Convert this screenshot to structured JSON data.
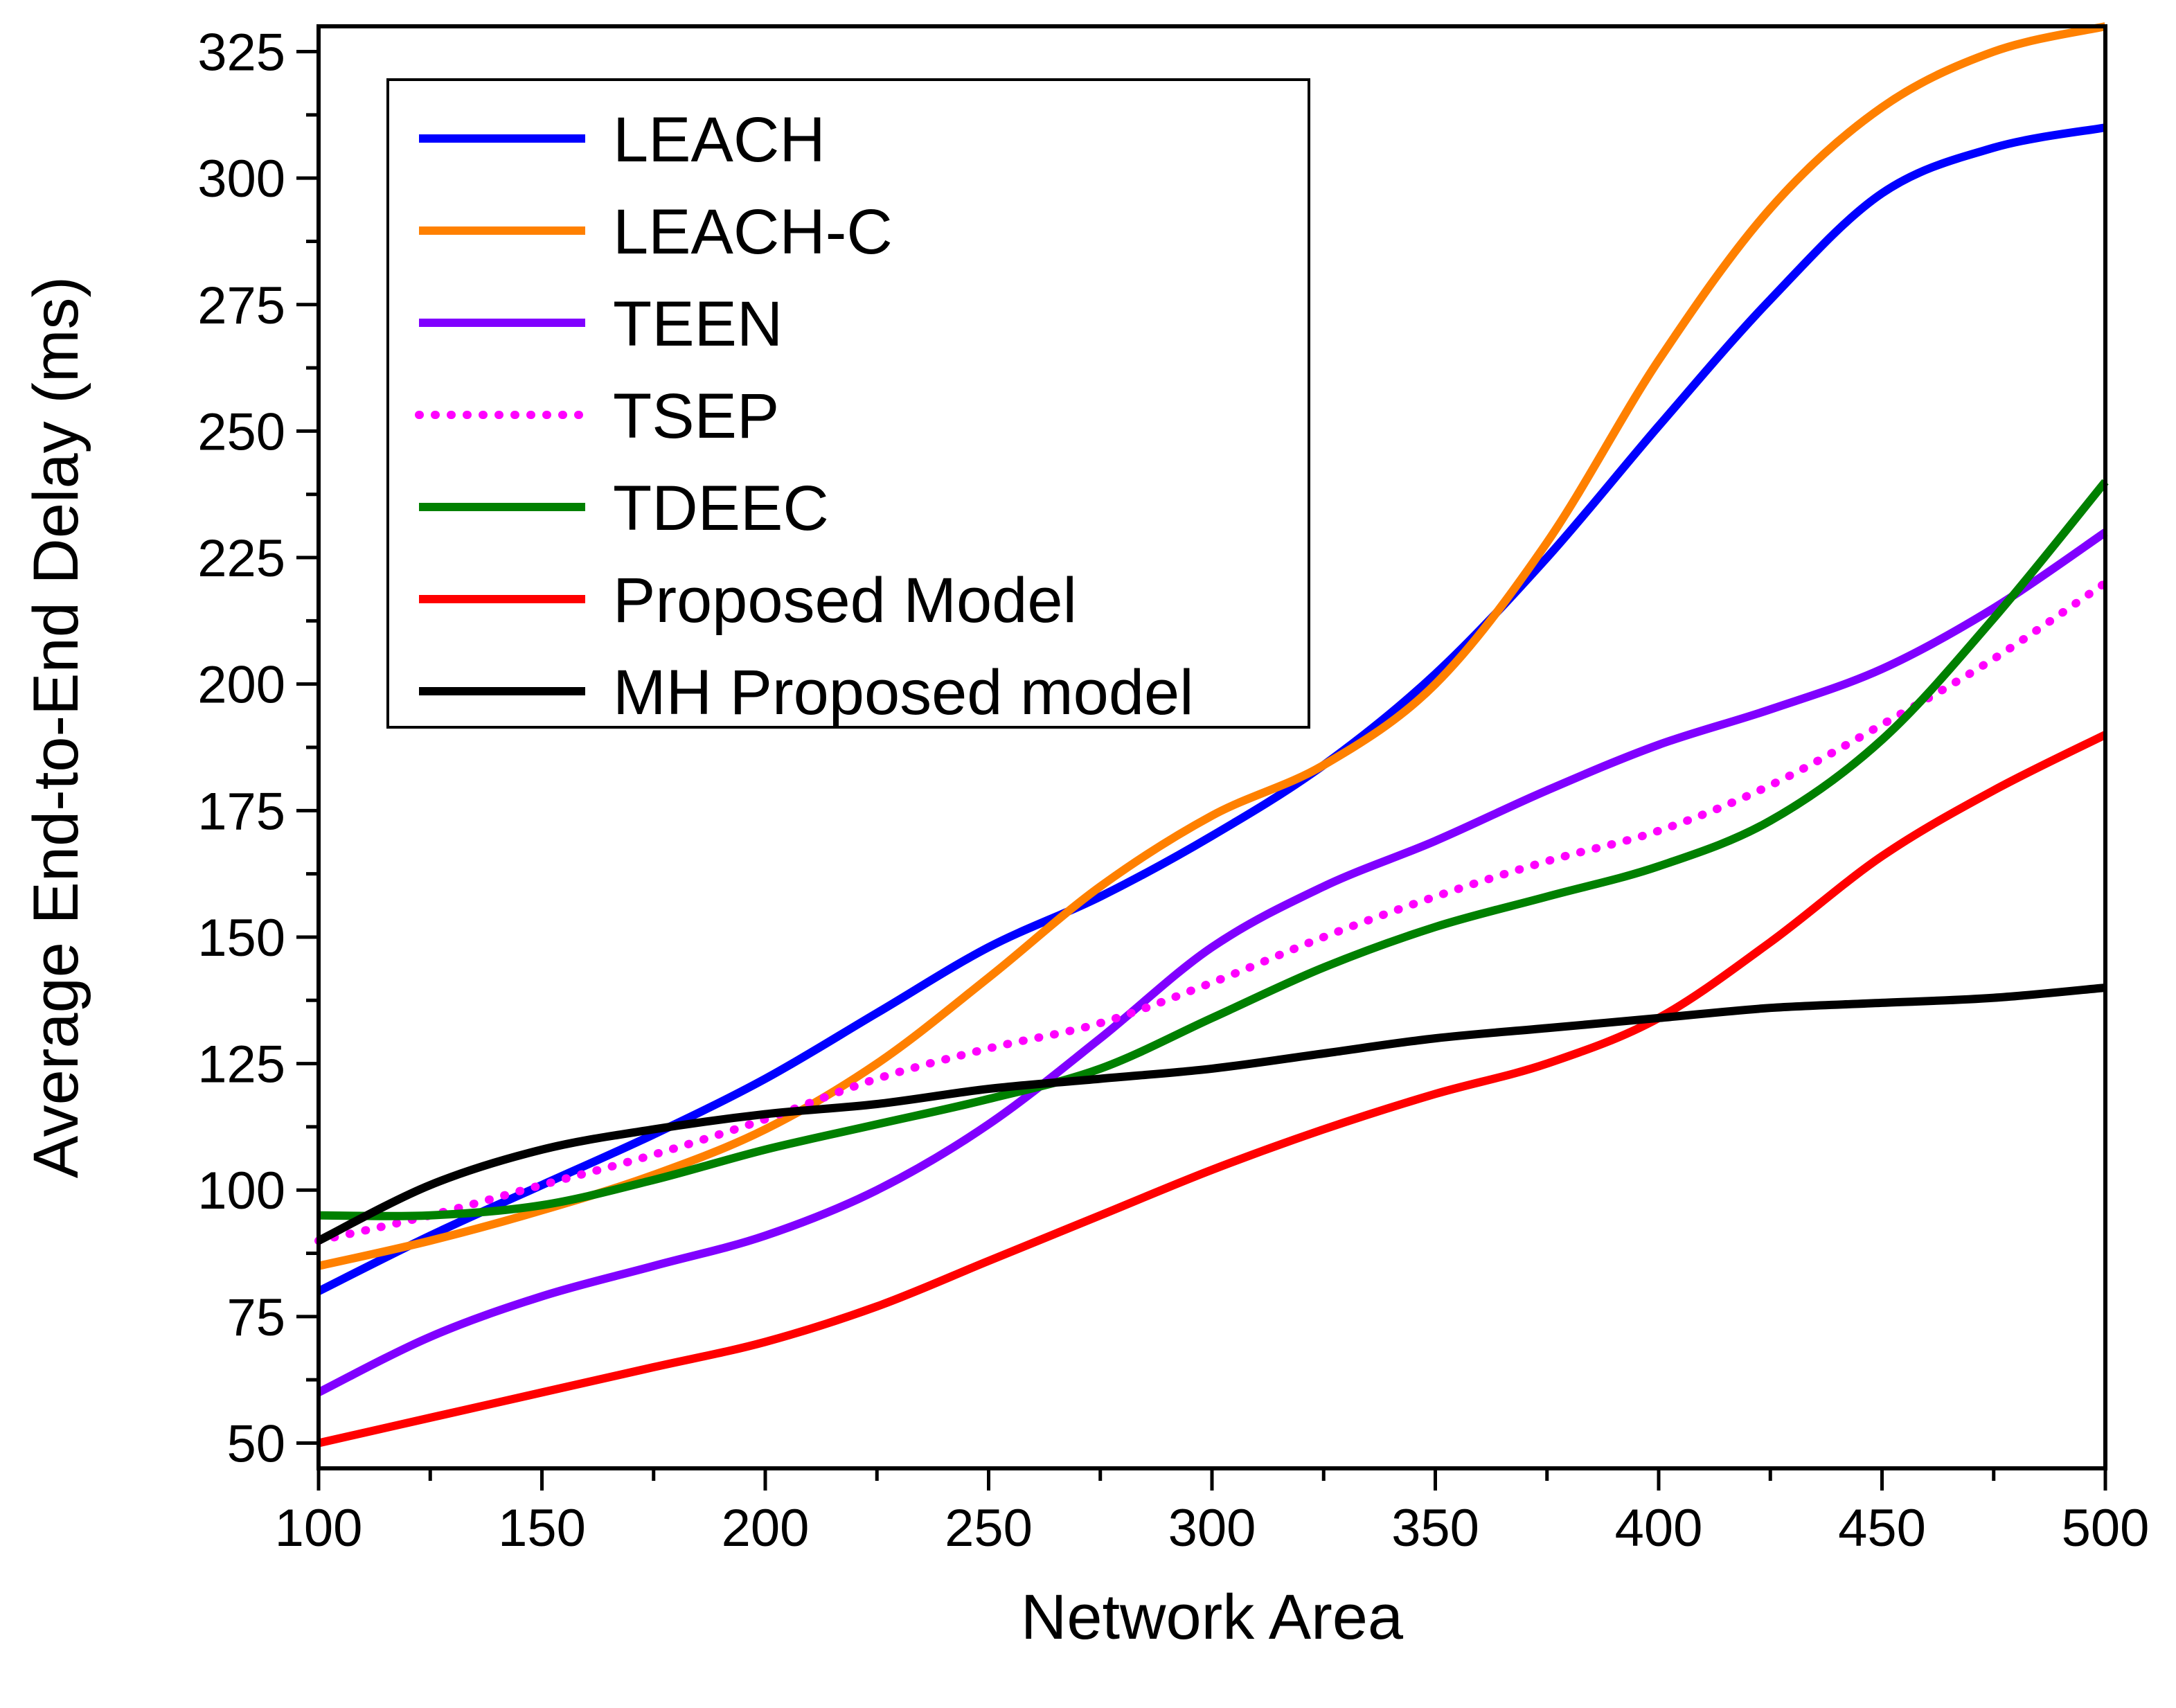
{
  "chart_data": {
    "type": "line",
    "title": "",
    "xlabel": "Network Area",
    "ylabel": "Average End-to-End Delay (ms)",
    "xlim": [
      100,
      500
    ],
    "ylim": [
      45,
      330
    ],
    "x_ticks": [
      100,
      150,
      200,
      250,
      300,
      350,
      400,
      450,
      500
    ],
    "y_ticks": [
      50,
      75,
      100,
      125,
      150,
      175,
      200,
      225,
      250,
      275,
      300,
      325
    ],
    "x": [
      100,
      125,
      150,
      175,
      200,
      225,
      250,
      275,
      300,
      325,
      350,
      375,
      400,
      425,
      450,
      475,
      500
    ],
    "series": [
      {
        "name": "LEACH",
        "color": "#0000ff",
        "dash": "solid",
        "values": [
          80,
          91,
          101,
          111,
          122,
          135,
          148,
          158,
          170,
          184,
          202,
          225,
          251,
          276,
          297,
          306,
          310
        ]
      },
      {
        "name": "LEACH-C",
        "color": "#ff8000",
        "dash": "solid",
        "values": [
          85,
          90,
          96,
          103,
          112,
          125,
          142,
          160,
          174,
          184,
          200,
          228,
          264,
          294,
          314,
          325,
          330
        ]
      },
      {
        "name": "TEEN",
        "color": "#8000ff",
        "dash": "solid",
        "values": [
          60,
          71,
          79,
          85,
          91,
          100,
          113,
          130,
          148,
          160,
          169,
          179,
          188,
          195,
          203,
          215,
          230
        ]
      },
      {
        "name": "TSEP",
        "color": "#ff00ff",
        "dash": "dotted",
        "values": [
          90,
          95,
          101,
          107,
          114,
          122,
          128,
          133,
          141,
          150,
          158,
          165,
          171,
          180,
          192,
          205,
          220
        ]
      },
      {
        "name": "TDEEC",
        "color": "#008000",
        "dash": "solid",
        "values": [
          95,
          95,
          97,
          102,
          108,
          113,
          118,
          124,
          134,
          144,
          152,
          158,
          164,
          173,
          189,
          213,
          240
        ]
      },
      {
        "name": "Proposed Model",
        "color": "#ff0000",
        "dash": "solid",
        "values": [
          50,
          55,
          60,
          65,
          70,
          77,
          86,
          95,
          104,
          112,
          119,
          125,
          134,
          149,
          166,
          179,
          190
        ]
      },
      {
        "name": "MH Proposed model",
        "color": "#000000",
        "dash": "solid",
        "values": [
          90,
          101,
          108,
          112,
          115,
          117,
          120,
          122,
          124,
          127,
          130,
          132,
          134,
          136,
          137,
          138,
          140
        ]
      }
    ]
  }
}
